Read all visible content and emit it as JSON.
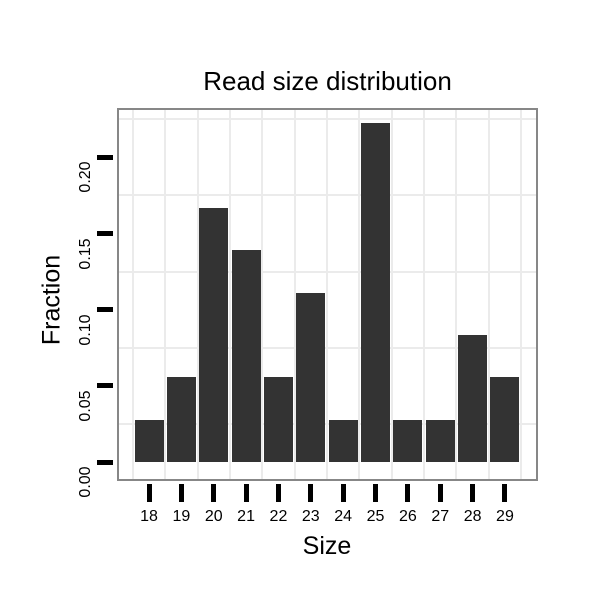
{
  "chart_data": {
    "type": "bar",
    "title": "Read size distribution",
    "xlabel": "Size",
    "ylabel": "Fraction",
    "categories": [
      "18",
      "19",
      "20",
      "21",
      "22",
      "23",
      "24",
      "25",
      "26",
      "27",
      "28",
      "29"
    ],
    "values": [
      0.0278,
      0.0556,
      0.1667,
      0.1389,
      0.0556,
      0.1111,
      0.0278,
      0.2222,
      0.0278,
      0.0278,
      0.0833,
      0.0556
    ],
    "ytick_values": [
      0.0,
      0.05,
      0.1,
      0.15,
      0.2
    ],
    "ytick_labels": [
      "0.00",
      "0.05",
      "0.10",
      "0.15",
      "0.20"
    ],
    "ylim": [
      -0.011,
      0.231
    ],
    "minor_y_gridlines": [
      0.025,
      0.075,
      0.125,
      0.175,
      0.225
    ],
    "grid": "minor gridlines only, light gray on white panel",
    "legend_position": "none"
  },
  "colors": {
    "bar": "#333333",
    "panel_border": "#878787",
    "gridline": "#ebebeb",
    "tick": "#000000",
    "text": "#000000",
    "background": "#ffffff"
  }
}
